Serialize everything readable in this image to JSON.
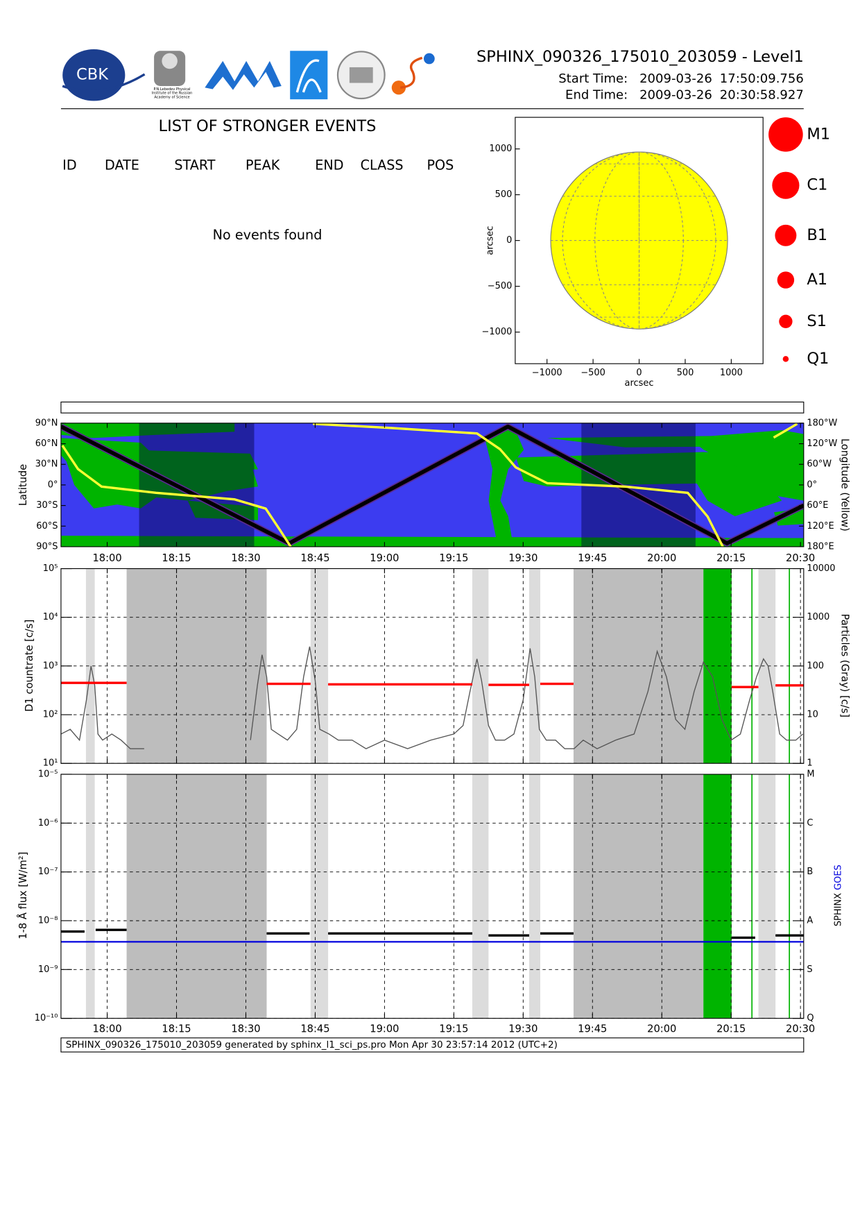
{
  "header": {
    "title": "SPHINX_090326_175010_203059 - Level1",
    "start_label": "Start Time:",
    "start_date": "2009-03-26",
    "start_time": "17:50:09.756",
    "end_label": "End Time:",
    "end_date": "2009-03-26",
    "end_time": "20:30:58.927"
  },
  "logos": {
    "cbk": "CBK",
    "lebedev": [
      "P.N.Lebedev Physical",
      "Institute of the Russian",
      "Academy of Science"
    ]
  },
  "events": {
    "title": "LIST OF STRONGER EVENTS",
    "columns": [
      "ID",
      "DATE",
      "START",
      "PEAK",
      "END",
      "CLASS",
      "POS"
    ],
    "message": "No events found"
  },
  "sun_map": {
    "xlabel": "arcsec",
    "ylabel": "arcsec",
    "xlim": [
      -1345,
      1345
    ],
    "ylim": [
      -1345,
      1345
    ],
    "xticks": [
      {
        "value": -1000,
        "label": "−1000"
      },
      {
        "value": -500,
        "label": "−500"
      },
      0,
      500,
      1000
    ],
    "yticks": [
      {
        "value": -1000,
        "label": "−1000"
      },
      {
        "value": -500,
        "label": "−500"
      },
      0,
      500,
      1000
    ],
    "radius": 960,
    "color": "#ffff00"
  },
  "class_legend": {
    "labels": [
      "M1",
      "C1",
      "B1",
      "A1",
      "S1",
      "Q1"
    ],
    "color": "#ff0000"
  },
  "time_axis": {
    "xlim": [
      1070,
      1230.7
    ],
    "xticks": [
      {
        "value": 1080,
        "label": "18:00"
      },
      {
        "value": 1095,
        "label": "18:15"
      },
      {
        "value": 1110,
        "label": "18:30"
      },
      {
        "value": 1125,
        "label": "18:45"
      },
      {
        "value": 1140,
        "label": "19:00"
      },
      {
        "value": 1155,
        "label": "19:15"
      },
      {
        "value": 1170,
        "label": "19:30"
      },
      {
        "value": 1185,
        "label": "19:45"
      },
      {
        "value": 1200,
        "label": "20:00"
      },
      {
        "value": 1215,
        "label": "20:15"
      },
      {
        "value": 1230,
        "label": "20:30"
      }
    ]
  },
  "map_panel": {
    "ylabel": "Latitude",
    "y2label": "Longitude (Yellow)",
    "ylim": [
      -90,
      90
    ],
    "yticks": [
      {
        "value": 90,
        "label": "90°N"
      },
      {
        "value": 60,
        "label": "60°N"
      },
      {
        "value": 30,
        "label": "30°N"
      },
      {
        "value": 0,
        "label": "0°"
      },
      {
        "value": -30,
        "label": "30°S"
      },
      {
        "value": -60,
        "label": "60°S"
      },
      {
        "value": -90,
        "label": "90°S"
      }
    ],
    "y2lim": [
      180,
      -180
    ],
    "y2ticks": [
      {
        "value": -180,
        "label": "180°W"
      },
      {
        "value": -120,
        "label": "120°W"
      },
      {
        "value": -60,
        "label": "60°W"
      },
      {
        "value": 0,
        "label": "0°"
      },
      {
        "value": 60,
        "label": "60°E"
      },
      {
        "value": 120,
        "label": "120°E"
      },
      {
        "value": 180,
        "label": "180°E"
      }
    ],
    "sea_color": "#3c3cf0",
    "land_color": "#00b400",
    "night_bands": [
      [
        1086.9,
        1111.8
      ],
      [
        1182.6,
        1207.3
      ]
    ],
    "orbit": {
      "color": "#000000",
      "x": [
        1070,
        1119.4,
        1166.7,
        1214.1,
        1230.7
      ],
      "values": [
        85,
        -85,
        85,
        -85,
        -30
      ]
    },
    "longitude": {
      "color": "#ffff33",
      "x": [
        1070.3,
        1073.7,
        1078.8,
        1090.6,
        1107.5,
        1114.3,
        1117.7,
        1119.7,
        1122,
        1124.5,
        1141.4,
        1160,
        1165,
        1168.4,
        1175.2,
        1192.1,
        1205.6,
        1209.9,
        1213.2,
        1216,
        1224.2,
        1229.3
      ],
      "values": [
        -115,
        -46,
        5,
        23,
        42,
        69,
        138,
        180,
        null,
        -178,
        -166,
        -150,
        -104,
        -51,
        -5,
        5,
        23,
        92,
        180,
        null,
        -138,
        -178
      ]
    }
  },
  "countrate_panel": {
    "ylabel": "D1 countrate [c/s]",
    "y2label": "Particles (Gray) [c/s]",
    "ylim": [
      10,
      100000
    ],
    "log": true,
    "yticks": [
      {
        "value": 10,
        "label": "10¹"
      },
      {
        "value": 100,
        "label": "10²"
      },
      {
        "value": 1000,
        "label": "10³"
      },
      {
        "value": 10000,
        "label": "10⁴"
      },
      {
        "value": 100000,
        "label": "10⁵"
      }
    ],
    "y2lim": [
      1,
      10000
    ],
    "y2ticks": [
      1,
      10,
      100,
      1000,
      10000
    ],
    "light_bands": [
      [
        1075.4,
        1077.3
      ],
      [
        1124.0,
        1127.8
      ],
      [
        1159.0,
        1162.5
      ],
      [
        1171.3,
        1173.7
      ],
      [
        1220.9,
        1224.6
      ]
    ],
    "dark_bands": [
      [
        1084.2,
        1114.5
      ],
      [
        1180.9,
        1209.0
      ]
    ],
    "green_bands": [
      [
        1209.0,
        1215.1
      ]
    ],
    "green_lines": [
      1219.5,
      1227.6
    ],
    "d1": {
      "color": "#ff0000",
      "segments": [
        {
          "start": 1070,
          "end": 1084.2,
          "value": 450
        },
        {
          "start": 1114.5,
          "end": 1124,
          "value": 430
        },
        {
          "start": 1127.8,
          "end": 1159,
          "value": 420
        },
        {
          "start": 1162.5,
          "end": 1171.3,
          "value": 410
        },
        {
          "start": 1173.7,
          "end": 1180.9,
          "value": 430
        },
        {
          "start": 1215.1,
          "end": 1220.9,
          "value": 370
        },
        {
          "start": 1224.6,
          "end": 1230.7,
          "value": 400
        }
      ]
    },
    "particles": {
      "color": "#555555",
      "x": [
        1070,
        1072,
        1074,
        1075.5,
        1076.5,
        1077.3,
        1078,
        1079,
        1081,
        1083,
        1085,
        1088,
        1100,
        1111,
        1112.5,
        1113.5,
        1114.5,
        1115.5,
        1117,
        1119,
        1121,
        1122.5,
        1123.8,
        1125,
        1126,
        1128,
        1130,
        1133,
        1136,
        1140,
        1145,
        1150,
        1155,
        1157,
        1158.5,
        1160,
        1161,
        1162.5,
        1164,
        1166,
        1168,
        1170,
        1171.5,
        1172.5,
        1173.5,
        1175,
        1177,
        1179,
        1181,
        1183,
        1186,
        1190,
        1194,
        1197,
        1199,
        1201,
        1203,
        1205,
        1207,
        1209,
        1211,
        1213,
        1215,
        1217,
        1219,
        1220.5,
        1222,
        1223,
        1224,
        1225.5,
        1227,
        1229,
        1230.5
      ],
      "values": [
        4,
        5,
        3,
        20,
        100,
        40,
        4,
        3,
        4,
        3,
        2,
        2,
        null,
        3,
        40,
        170,
        60,
        5,
        4,
        3,
        5,
        60,
        250,
        50,
        5,
        4,
        3,
        3,
        2,
        3,
        2,
        3,
        4,
        6,
        30,
        140,
        50,
        6,
        3,
        3,
        4,
        20,
        230,
        60,
        5,
        3,
        3,
        2,
        2,
        3,
        2,
        3,
        4,
        30,
        200,
        60,
        8,
        5,
        30,
        120,
        60,
        8,
        3,
        4,
        20,
        60,
        140,
        100,
        30,
        4,
        3,
        3,
        4
      ]
    }
  },
  "flux_panel": {
    "ylabel": "1-8 Å flux [W/m²]",
    "ylim": [
      1e-10,
      1e-05
    ],
    "log": true,
    "yticks": [
      {
        "value": 1e-10,
        "label": "10⁻¹⁰"
      },
      {
        "value": 1e-09,
        "label": "10⁻⁹"
      },
      {
        "value": 1e-08,
        "label": "10⁻⁸"
      },
      {
        "value": 1e-07,
        "label": "10⁻⁷"
      },
      {
        "value": 1e-06,
        "label": "10⁻⁶"
      },
      {
        "value": 1e-05,
        "label": "10⁻⁵"
      }
    ],
    "class_ticks": [
      {
        "value": 1e-10,
        "label": "Q"
      },
      {
        "value": 1e-09,
        "label": "S"
      },
      {
        "value": 1e-08,
        "label": "A"
      },
      {
        "value": 1e-07,
        "label": "B"
      },
      {
        "value": 1e-06,
        "label": "C"
      },
      {
        "value": 1e-05,
        "label": "M"
      }
    ],
    "sphinx": {
      "name": "SPHINX",
      "color": "#000000",
      "segments": [
        {
          "start": 1070,
          "end": 1075.1,
          "value": 6e-09
        },
        {
          "start": 1077.5,
          "end": 1084.2,
          "value": 6.5e-09
        },
        {
          "start": 1114.5,
          "end": 1123.8,
          "value": 5.5e-09
        },
        {
          "start": 1127.8,
          "end": 1159,
          "value": 5.5e-09
        },
        {
          "start": 1162.5,
          "end": 1171.3,
          "value": 5e-09
        },
        {
          "start": 1173.7,
          "end": 1180.9,
          "value": 5.5e-09
        },
        {
          "start": 1215.1,
          "end": 1220.2,
          "value": 4.5e-09
        },
        {
          "start": 1224.6,
          "end": 1230.7,
          "value": 5e-09
        }
      ]
    },
    "goes": {
      "name": "GOES",
      "color": "#0000dd",
      "x": [
        1070,
        1230.7
      ],
      "values": [
        3.7e-09,
        3.7e-09
      ]
    }
  },
  "footer": {
    "text": "SPHINX_090326_175010_203059 generated by sphinx_l1_sci_ps.pro Mon Apr 30 23:57:14 2012 (UTC+2)"
  }
}
